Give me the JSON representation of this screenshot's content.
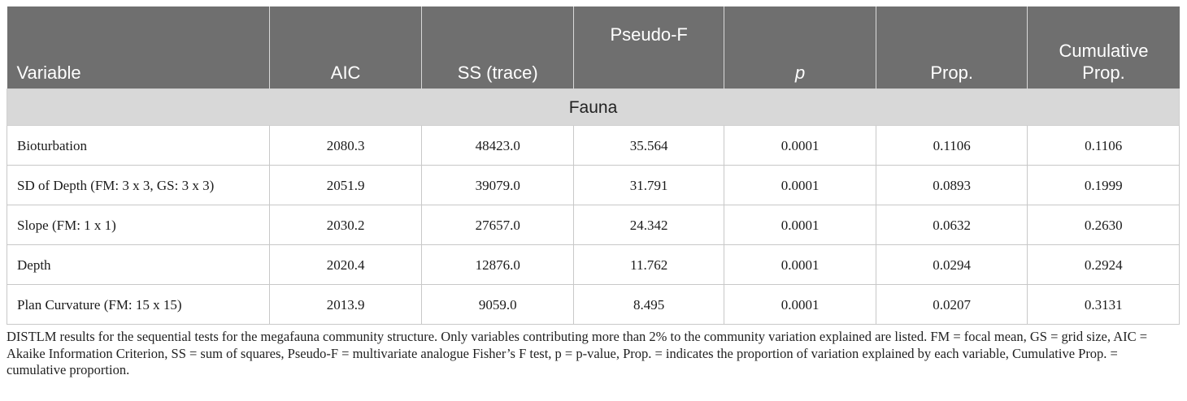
{
  "table": {
    "headers": [
      "Variable",
      "AIC",
      "SS (trace)",
      "Pseudo-F",
      "p",
      "Prop.",
      "Cumulative Prop."
    ],
    "section": "Fauna",
    "rows": [
      [
        "Bioturbation",
        "2080.3",
        "48423.0",
        "35.564",
        "0.0001",
        "0.1106",
        "0.1106"
      ],
      [
        "SD of Depth (FM: 3 x 3, GS: 3 x 3)",
        "2051.9",
        "39079.0",
        "31.791",
        "0.0001",
        "0.0893",
        "0.1999"
      ],
      [
        "Slope (FM: 1 x 1)",
        "2030.2",
        "27657.0",
        "24.342",
        "0.0001",
        "0.0632",
        "0.2630"
      ],
      [
        "Depth",
        "2020.4",
        "12876.0",
        "11.762",
        "0.0001",
        "0.0294",
        "0.2924"
      ],
      [
        "Plan Curvature (FM: 15 x 15)",
        "2013.9",
        "9059.0",
        "8.495",
        "0.0001",
        "0.0207",
        "0.3131"
      ]
    ]
  },
  "caption": "DISTLM results for the sequential tests for the megafauna community structure. Only variables contributing more than 2% to the community variation explained are listed. FM = focal mean, GS = grid size, AIC = Akaike Information Criterion, SS = sum of squares, Pseudo-F = multivariate analogue Fisher’s F test, p = p-value, Prop. = indicates the proportion of variation explained by each variable, Cumulative Prop. = cumulative proportion."
}
